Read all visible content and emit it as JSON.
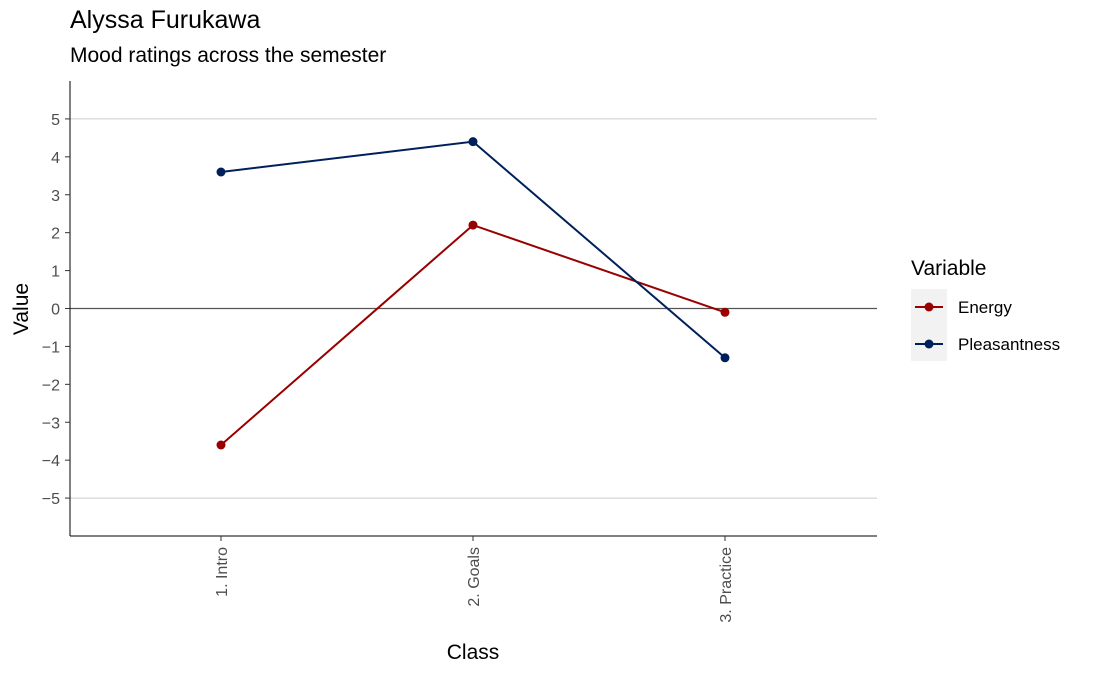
{
  "chart_data": {
    "type": "line",
    "title": "Alyssa Furukawa",
    "subtitle": "Mood ratings across the semester",
    "xlabel": "Class",
    "ylabel": "Value",
    "categories": [
      "1. Intro",
      "2. Goals",
      "3. Practice"
    ],
    "ylim": [
      -6,
      6
    ],
    "yticks": [
      -5,
      -4,
      -3,
      -2,
      -1,
      0,
      1,
      2,
      3,
      4,
      5
    ],
    "ytick_labels": [
      "−5",
      "−4",
      "−3",
      "−2",
      "−1",
      "0",
      "1",
      "2",
      "3",
      "4",
      "5"
    ],
    "gridlines": [
      5,
      -5
    ],
    "reference_line": 0,
    "legend": {
      "title": "Variable",
      "placement": "right"
    },
    "series": [
      {
        "name": "Energy",
        "color": "#990000",
        "values": [
          -3.6,
          2.2,
          -0.1
        ]
      },
      {
        "name": "Pleasantness",
        "color": "#00205b",
        "values": [
          3.6,
          4.4,
          -1.3
        ]
      }
    ]
  }
}
